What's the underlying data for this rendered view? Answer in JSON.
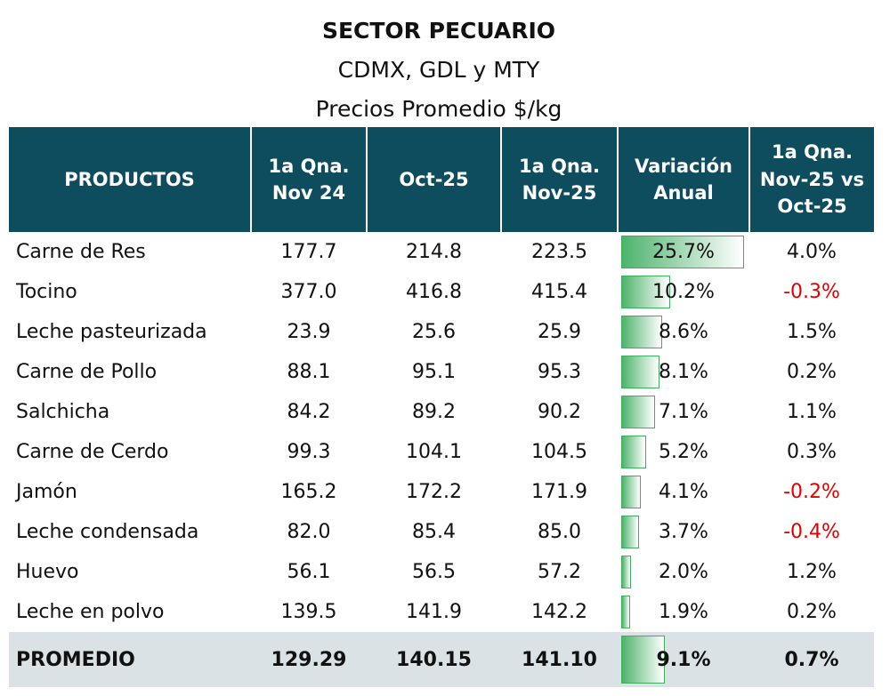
{
  "header": {
    "title": "SECTOR PECUARIO",
    "subtitle": "CDMX, GDL y MTY",
    "note": "Precios Promedio $/kg"
  },
  "table": {
    "columns": [
      "PRODUCTOS",
      "1a Qna. Nov 24",
      "Oct-25",
      "1a Qna. Nov-25",
      "Variación Anual",
      "1a Qna. Nov-25 vs Oct-25"
    ],
    "rows": [
      {
        "producto": "Carne de Res",
        "nov24": "177.7",
        "oct25": "214.8",
        "nov25": "223.5",
        "variacion": {
          "value": 25.7,
          "label": "25.7%"
        },
        "vs_oct": {
          "value": 4.0,
          "label": "4.0%"
        }
      },
      {
        "producto": "Tocino",
        "nov24": "377.0",
        "oct25": "416.8",
        "nov25": "415.4",
        "variacion": {
          "value": 10.2,
          "label": "10.2%"
        },
        "vs_oct": {
          "value": -0.3,
          "label": "-0.3%"
        }
      },
      {
        "producto": "Leche pasteurizada",
        "nov24": "23.9",
        "oct25": "25.6",
        "nov25": "25.9",
        "variacion": {
          "value": 8.6,
          "label": "8.6%"
        },
        "vs_oct": {
          "value": 1.5,
          "label": "1.5%"
        }
      },
      {
        "producto": "Carne de Pollo",
        "nov24": "88.1",
        "oct25": "95.1",
        "nov25": "95.3",
        "variacion": {
          "value": 8.1,
          "label": "8.1%"
        },
        "vs_oct": {
          "value": 0.2,
          "label": "0.2%"
        }
      },
      {
        "producto": "Salchicha",
        "nov24": "84.2",
        "oct25": "89.2",
        "nov25": "90.2",
        "variacion": {
          "value": 7.1,
          "label": "7.1%"
        },
        "vs_oct": {
          "value": 1.1,
          "label": "1.1%"
        }
      },
      {
        "producto": "Carne de Cerdo",
        "nov24": "99.3",
        "oct25": "104.1",
        "nov25": "104.5",
        "variacion": {
          "value": 5.2,
          "label": "5.2%"
        },
        "vs_oct": {
          "value": 0.3,
          "label": "0.3%"
        }
      },
      {
        "producto": "Jamón",
        "nov24": "165.2",
        "oct25": "172.2",
        "nov25": "171.9",
        "variacion": {
          "value": 4.1,
          "label": "4.1%"
        },
        "vs_oct": {
          "value": -0.2,
          "label": "-0.2%"
        }
      },
      {
        "producto": "Leche condensada",
        "nov24": "82.0",
        "oct25": "85.4",
        "nov25": "85.0",
        "variacion": {
          "value": 3.7,
          "label": "3.7%"
        },
        "vs_oct": {
          "value": -0.4,
          "label": "-0.4%"
        }
      },
      {
        "producto": "Huevo",
        "nov24": "56.1",
        "oct25": "56.5",
        "nov25": "57.2",
        "variacion": {
          "value": 2.0,
          "label": "2.0%"
        },
        "vs_oct": {
          "value": 1.2,
          "label": "1.2%"
        }
      },
      {
        "producto": "Leche en polvo",
        "nov24": "139.5",
        "oct25": "141.9",
        "nov25": "142.2",
        "variacion": {
          "value": 1.9,
          "label": "1.9%"
        },
        "vs_oct": {
          "value": 0.2,
          "label": "0.2%"
        }
      }
    ],
    "total": {
      "producto": "PROMEDIO",
      "nov24": "129.29",
      "oct25": "140.15",
      "nov25": "141.10",
      "variacion": {
        "value": 9.1,
        "label": "9.1%"
      },
      "vs_oct": {
        "value": 0.7,
        "label": "0.7%"
      }
    }
  }
}
